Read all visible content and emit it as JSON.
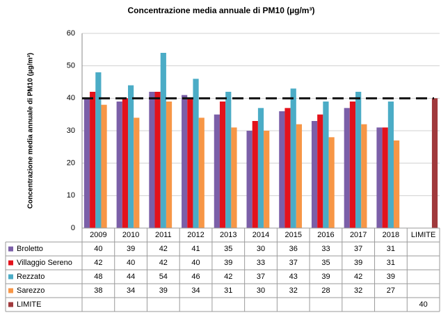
{
  "chart_data": {
    "type": "bar",
    "title": "Concentrazione media annuale di  PM10  (µg/m³)",
    "y_label": "Concentrazione media annuale di  PM10  (µg/m³)",
    "categories": [
      "2009",
      "2010",
      "2011",
      "2012",
      "2013",
      "2014",
      "2015",
      "2016",
      "2017",
      "2018",
      "LIMITE"
    ],
    "series": [
      {
        "name": "Broletto",
        "color": "#7b5fa8",
        "values": [
          40,
          39,
          42,
          41,
          35,
          30,
          36,
          33,
          37,
          31,
          null
        ]
      },
      {
        "name": "Villaggio Sereno",
        "color": "#e3121b",
        "values": [
          42,
          40,
          42,
          40,
          39,
          33,
          37,
          35,
          39,
          31,
          null
        ]
      },
      {
        "name": "Rezzato",
        "color": "#4bacc6",
        "values": [
          48,
          44,
          54,
          46,
          42,
          37,
          43,
          39,
          42,
          39,
          null
        ]
      },
      {
        "name": "Sarezzo",
        "color": "#f79646",
        "values": [
          38,
          34,
          39,
          34,
          31,
          30,
          32,
          28,
          32,
          27,
          null
        ]
      },
      {
        "name": "LIMITE",
        "color": "#a0393c",
        "values": [
          null,
          null,
          null,
          null,
          null,
          null,
          null,
          null,
          null,
          null,
          40
        ]
      }
    ],
    "ylim": [
      0,
      60
    ],
    "yticks": [
      0,
      10,
      20,
      30,
      40,
      50,
      60
    ],
    "grid": true
  }
}
